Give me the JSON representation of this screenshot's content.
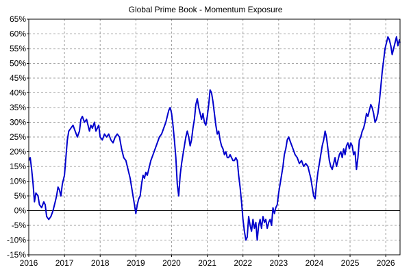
{
  "chart_data": {
    "type": "line",
    "title": "Global Prime Book - Momentum Exposure",
    "xlabel": "",
    "ylabel": "",
    "x_range": [
      2016.0,
      2026.4
    ],
    "x_ticks": [
      2016,
      2017,
      2018,
      2019,
      2020,
      2021,
      2022,
      2023,
      2024,
      2025,
      2026
    ],
    "x_tick_labels": [
      "2016",
      "2017",
      "2018",
      "2019",
      "2020",
      "2021",
      "2022",
      "2023",
      "2024",
      "2025",
      "2026"
    ],
    "ylim": [
      -15,
      65
    ],
    "y_ticks": [
      -15,
      -10,
      -5,
      0,
      5,
      10,
      15,
      20,
      25,
      30,
      35,
      40,
      45,
      50,
      55,
      60,
      65
    ],
    "y_tick_labels": [
      "-15%",
      "-10%",
      "-5%",
      "0%",
      "5%",
      "10%",
      "15%",
      "20%",
      "25%",
      "30%",
      "35%",
      "40%",
      "45%",
      "50%",
      "55%",
      "60%",
      "65%"
    ],
    "grid": true,
    "zero_line": true,
    "colors": {
      "series": "#0000cc",
      "grid": "#a0a0a0",
      "axis": "#000000"
    },
    "series": [
      {
        "values": [
          [
            2016.0,
            17
          ],
          [
            2016.04,
            18
          ],
          [
            2016.08,
            14
          ],
          [
            2016.12,
            9
          ],
          [
            2016.16,
            3
          ],
          [
            2016.2,
            6
          ],
          [
            2016.26,
            5
          ],
          [
            2016.3,
            2
          ],
          [
            2016.36,
            1
          ],
          [
            2016.42,
            3
          ],
          [
            2016.46,
            2
          ],
          [
            2016.5,
            -2
          ],
          [
            2016.56,
            -3
          ],
          [
            2016.62,
            -2
          ],
          [
            2016.68,
            0
          ],
          [
            2016.74,
            3
          ],
          [
            2016.78,
            5
          ],
          [
            2016.82,
            8
          ],
          [
            2016.86,
            7
          ],
          [
            2016.9,
            5
          ],
          [
            2016.94,
            9
          ],
          [
            2017.0,
            12
          ],
          [
            2017.04,
            18
          ],
          [
            2017.08,
            24
          ],
          [
            2017.12,
            27
          ],
          [
            2017.18,
            28
          ],
          [
            2017.24,
            29
          ],
          [
            2017.3,
            27
          ],
          [
            2017.36,
            25
          ],
          [
            2017.42,
            27
          ],
          [
            2017.46,
            31
          ],
          [
            2017.5,
            32
          ],
          [
            2017.56,
            30
          ],
          [
            2017.62,
            31
          ],
          [
            2017.66,
            29
          ],
          [
            2017.7,
            27
          ],
          [
            2017.74,
            29
          ],
          [
            2017.78,
            28
          ],
          [
            2017.84,
            30
          ],
          [
            2017.88,
            27
          ],
          [
            2017.92,
            28
          ],
          [
            2017.96,
            29
          ],
          [
            2018.0,
            25
          ],
          [
            2018.06,
            24
          ],
          [
            2018.12,
            26
          ],
          [
            2018.18,
            25
          ],
          [
            2018.24,
            26
          ],
          [
            2018.3,
            24
          ],
          [
            2018.36,
            23
          ],
          [
            2018.42,
            25
          ],
          [
            2018.48,
            26
          ],
          [
            2018.54,
            25
          ],
          [
            2018.6,
            21
          ],
          [
            2018.66,
            18
          ],
          [
            2018.72,
            17
          ],
          [
            2018.78,
            14
          ],
          [
            2018.84,
            11
          ],
          [
            2018.88,
            8
          ],
          [
            2018.92,
            5
          ],
          [
            2018.96,
            2
          ],
          [
            2019.0,
            -1
          ],
          [
            2019.04,
            2
          ],
          [
            2019.08,
            4
          ],
          [
            2019.12,
            5
          ],
          [
            2019.16,
            9
          ],
          [
            2019.2,
            12
          ],
          [
            2019.24,
            11
          ],
          [
            2019.28,
            13
          ],
          [
            2019.32,
            12
          ],
          [
            2019.36,
            14
          ],
          [
            2019.42,
            17
          ],
          [
            2019.48,
            19
          ],
          [
            2019.54,
            21
          ],
          [
            2019.6,
            23
          ],
          [
            2019.66,
            25
          ],
          [
            2019.72,
            26
          ],
          [
            2019.78,
            28
          ],
          [
            2019.84,
            30
          ],
          [
            2019.88,
            32
          ],
          [
            2019.92,
            34
          ],
          [
            2019.96,
            35
          ],
          [
            2020.0,
            33
          ],
          [
            2020.04,
            29
          ],
          [
            2020.08,
            24
          ],
          [
            2020.12,
            18
          ],
          [
            2020.16,
            9
          ],
          [
            2020.2,
            5
          ],
          [
            2020.24,
            12
          ],
          [
            2020.28,
            16
          ],
          [
            2020.32,
            19
          ],
          [
            2020.36,
            22
          ],
          [
            2020.4,
            25
          ],
          [
            2020.44,
            27
          ],
          [
            2020.48,
            25
          ],
          [
            2020.52,
            22
          ],
          [
            2020.56,
            24
          ],
          [
            2020.6,
            28
          ],
          [
            2020.64,
            31
          ],
          [
            2020.68,
            36
          ],
          [
            2020.72,
            38
          ],
          [
            2020.76,
            35
          ],
          [
            2020.8,
            33
          ],
          [
            2020.84,
            31
          ],
          [
            2020.88,
            33
          ],
          [
            2020.92,
            30
          ],
          [
            2020.96,
            29
          ],
          [
            2021.0,
            32
          ],
          [
            2021.04,
            36
          ],
          [
            2021.08,
            41
          ],
          [
            2021.12,
            40
          ],
          [
            2021.16,
            37
          ],
          [
            2021.2,
            33
          ],
          [
            2021.24,
            29
          ],
          [
            2021.28,
            26
          ],
          [
            2021.32,
            27
          ],
          [
            2021.36,
            24
          ],
          [
            2021.4,
            22
          ],
          [
            2021.44,
            21
          ],
          [
            2021.48,
            19
          ],
          [
            2021.52,
            20
          ],
          [
            2021.56,
            18
          ],
          [
            2021.6,
            18
          ],
          [
            2021.64,
            19
          ],
          [
            2021.68,
            18
          ],
          [
            2021.72,
            17
          ],
          [
            2021.76,
            17
          ],
          [
            2021.8,
            18
          ],
          [
            2021.84,
            17
          ],
          [
            2021.88,
            12
          ],
          [
            2021.92,
            8
          ],
          [
            2021.96,
            3
          ],
          [
            2022.0,
            -3
          ],
          [
            2022.04,
            -7
          ],
          [
            2022.08,
            -10
          ],
          [
            2022.12,
            -9
          ],
          [
            2022.16,
            -2
          ],
          [
            2022.2,
            -5
          ],
          [
            2022.24,
            -7
          ],
          [
            2022.28,
            -3
          ],
          [
            2022.32,
            -6
          ],
          [
            2022.36,
            -4
          ],
          [
            2022.4,
            -10
          ],
          [
            2022.44,
            -5
          ],
          [
            2022.48,
            -3
          ],
          [
            2022.52,
            -6
          ],
          [
            2022.56,
            -2
          ],
          [
            2022.6,
            -4
          ],
          [
            2022.64,
            -3
          ],
          [
            2022.68,
            -6
          ],
          [
            2022.72,
            -4
          ],
          [
            2022.76,
            -3
          ],
          [
            2022.8,
            -5
          ],
          [
            2022.84,
            1
          ],
          [
            2022.88,
            -1
          ],
          [
            2022.92,
            1
          ],
          [
            2022.96,
            2
          ],
          [
            2023.0,
            6
          ],
          [
            2023.04,
            9
          ],
          [
            2023.08,
            12
          ],
          [
            2023.12,
            15
          ],
          [
            2023.16,
            19
          ],
          [
            2023.2,
            21
          ],
          [
            2023.24,
            24
          ],
          [
            2023.28,
            25
          ],
          [
            2023.34,
            23
          ],
          [
            2023.4,
            21
          ],
          [
            2023.46,
            19
          ],
          [
            2023.52,
            18
          ],
          [
            2023.58,
            16
          ],
          [
            2023.64,
            17
          ],
          [
            2023.7,
            15
          ],
          [
            2023.76,
            16
          ],
          [
            2023.82,
            15
          ],
          [
            2023.86,
            13
          ],
          [
            2023.9,
            11
          ],
          [
            2023.94,
            8
          ],
          [
            2023.98,
            5
          ],
          [
            2024.02,
            4
          ],
          [
            2024.06,
            9
          ],
          [
            2024.1,
            13
          ],
          [
            2024.14,
            16
          ],
          [
            2024.18,
            19
          ],
          [
            2024.22,
            22
          ],
          [
            2024.26,
            24
          ],
          [
            2024.3,
            27
          ],
          [
            2024.34,
            25
          ],
          [
            2024.38,
            21
          ],
          [
            2024.42,
            17
          ],
          [
            2024.46,
            15
          ],
          [
            2024.5,
            14
          ],
          [
            2024.54,
            16
          ],
          [
            2024.58,
            18
          ],
          [
            2024.62,
            15
          ],
          [
            2024.66,
            17
          ],
          [
            2024.7,
            19
          ],
          [
            2024.74,
            20
          ],
          [
            2024.78,
            18
          ],
          [
            2024.82,
            21
          ],
          [
            2024.86,
            19
          ],
          [
            2024.9,
            22
          ],
          [
            2024.94,
            23
          ],
          [
            2024.98,
            21
          ],
          [
            2025.02,
            23
          ],
          [
            2025.06,
            22
          ],
          [
            2025.1,
            19
          ],
          [
            2025.14,
            20
          ],
          [
            2025.18,
            14
          ],
          [
            2025.22,
            18
          ],
          [
            2025.26,
            24
          ],
          [
            2025.3,
            25
          ],
          [
            2025.34,
            27
          ],
          [
            2025.38,
            28
          ],
          [
            2025.42,
            30
          ],
          [
            2025.46,
            33
          ],
          [
            2025.5,
            32
          ],
          [
            2025.54,
            34
          ],
          [
            2025.58,
            36
          ],
          [
            2025.62,
            35
          ],
          [
            2025.66,
            33
          ],
          [
            2025.7,
            30
          ],
          [
            2025.74,
            31
          ],
          [
            2025.78,
            33
          ],
          [
            2025.82,
            37
          ],
          [
            2025.86,
            42
          ],
          [
            2025.9,
            47
          ],
          [
            2025.94,
            51
          ],
          [
            2025.98,
            55
          ],
          [
            2026.02,
            57
          ],
          [
            2026.06,
            59
          ],
          [
            2026.1,
            58
          ],
          [
            2026.14,
            56
          ],
          [
            2026.18,
            53
          ],
          [
            2026.22,
            55
          ],
          [
            2026.26,
            57
          ],
          [
            2026.3,
            59
          ],
          [
            2026.34,
            56
          ],
          [
            2026.38,
            58
          ],
          [
            2026.4,
            57
          ]
        ]
      }
    ]
  }
}
